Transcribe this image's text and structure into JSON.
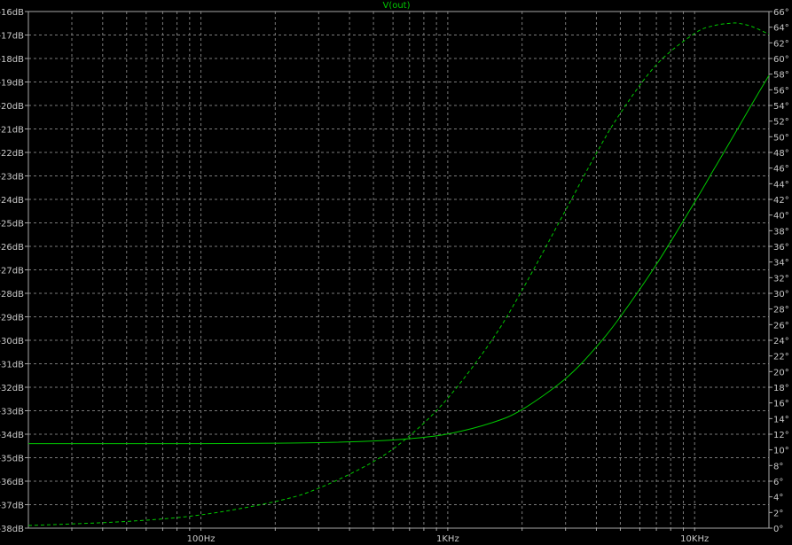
{
  "chart_data": {
    "type": "line",
    "title": "V(out)",
    "x_scale": "log",
    "xlim": [
      20,
      20000
    ],
    "x_ticks": [
      {
        "value": 100,
        "label": "100Hz"
      },
      {
        "value": 1000,
        "label": "1KHz"
      },
      {
        "value": 10000,
        "label": "10KHz"
      }
    ],
    "y_left": {
      "lim": [
        -38,
        -16
      ],
      "step": 1,
      "unit": "dB",
      "tick_labels": [
        "-16dB",
        "-17dB",
        "-18dB",
        "-19dB",
        "-20dB",
        "-21dB",
        "-22dB",
        "-23dB",
        "-24dB",
        "-25dB",
        "-26dB",
        "-27dB",
        "-28dB",
        "-29dB",
        "-30dB",
        "-31dB",
        "-32dB",
        "-33dB",
        "-34dB",
        "-35dB",
        "-36dB",
        "-37dB",
        "-38dB"
      ]
    },
    "y_right": {
      "lim": [
        0,
        66
      ],
      "step": 2,
      "unit": "°",
      "tick_labels": [
        "66°",
        "64°",
        "62°",
        "60°",
        "58°",
        "56°",
        "54°",
        "52°",
        "50°",
        "48°",
        "46°",
        "44°",
        "42°",
        "40°",
        "38°",
        "36°",
        "34°",
        "32°",
        "30°",
        "28°",
        "26°",
        "24°",
        "22°",
        "20°",
        "18°",
        "16°",
        "14°",
        "12°",
        "10°",
        "8°",
        "6°",
        "4°",
        "2°",
        "0°"
      ]
    },
    "grid": true,
    "series": [
      {
        "name": "V(out)",
        "quantity": "magnitude",
        "axis": "left",
        "style": "solid",
        "color": "#00c800",
        "x": [
          20,
          50,
          100,
          200,
          300,
          500,
          700,
          1000,
          1500,
          2000,
          3000,
          4000,
          5000,
          7000,
          10000,
          12000,
          14000,
          15000,
          17000,
          20000
        ],
        "y": [
          -34.4,
          -34.4,
          -34.4,
          -34.38,
          -34.36,
          -34.29,
          -34.19,
          -33.99,
          -33.52,
          -32.95,
          -31.63,
          -30.28,
          -29.0,
          -26.77,
          -24.12,
          -22.7,
          -21.5,
          -20.96,
          -19.97,
          -18.72
        ]
      },
      {
        "name": "V(out)",
        "quantity": "phase",
        "axis": "right",
        "style": "dashed",
        "color": "#00c800",
        "x": [
          20,
          50,
          100,
          200,
          300,
          500,
          700,
          1000,
          1500,
          2000,
          3000,
          4000,
          5000,
          7000,
          10000,
          12000,
          14000,
          15000,
          17000,
          20000
        ],
        "y": [
          0.34,
          0.86,
          1.7,
          3.4,
          5.1,
          8.5,
          11.8,
          16.6,
          23.9,
          30.4,
          40.6,
          47.9,
          53.0,
          59.2,
          63.2,
          64.2,
          64.5,
          64.5,
          64.1,
          63.1
        ]
      }
    ],
    "colors": {
      "background": "#000000",
      "grid": "#7a7a7a",
      "axis": "#a8a8a8",
      "text": "#c8c8c8",
      "trace": "#00c800"
    }
  }
}
